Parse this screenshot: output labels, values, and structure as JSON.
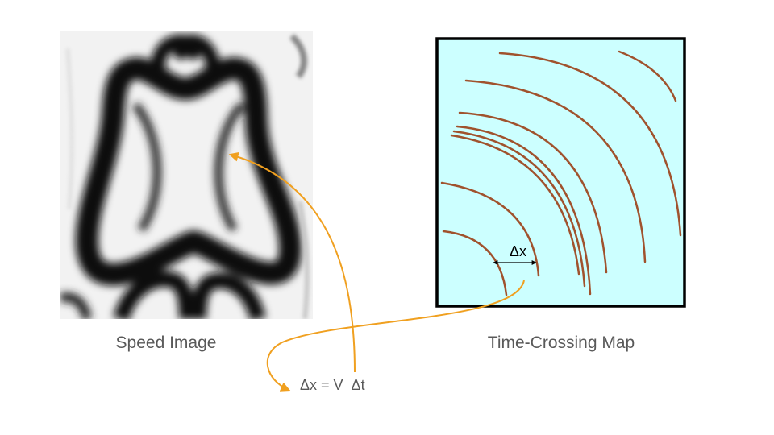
{
  "speed_image": {
    "caption": "Speed Image"
  },
  "time_crossing_map": {
    "caption": "Time-Crossing Map",
    "delta_label": "Δx",
    "background_color": "#ccffff",
    "curve_color": "#a0522d"
  },
  "equation": {
    "text": "Δx = V  Δt"
  },
  "arrow_color": "#f0a020"
}
